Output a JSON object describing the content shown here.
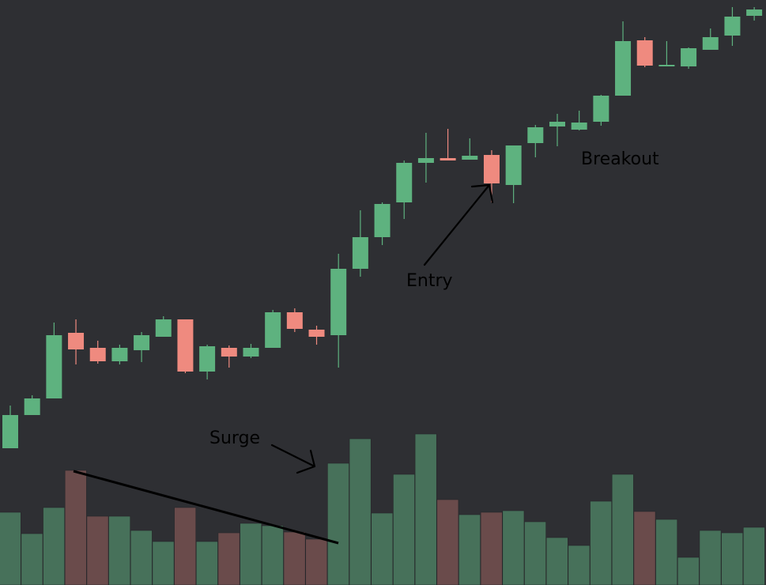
{
  "chart_data": {
    "type": "candlestick",
    "colors": {
      "background": "#2e2f33",
      "up_candle": "#5eb27f",
      "down_candle": "#ef8a7f",
      "up_volume": "#47715a",
      "down_volume": "#6a4b4b",
      "annotation": "#000000"
    },
    "price_range": [
      0,
      740
    ],
    "volume_range": [
      0,
      200
    ],
    "grid": false,
    "candles": [
      {
        "open": 173,
        "close": 215,
        "high": 227,
        "low": 173
      },
      {
        "open": 215,
        "close": 236,
        "high": 240,
        "low": 215
      },
      {
        "open": 236,
        "close": 316,
        "high": 332,
        "low": 236
      },
      {
        "open": 319,
        "close": 298,
        "high": 336,
        "low": 279
      },
      {
        "open": 300,
        "close": 283,
        "high": 309,
        "low": 280
      },
      {
        "open": 283,
        "close": 300,
        "high": 304,
        "low": 279
      },
      {
        "open": 297,
        "close": 316,
        "high": 320,
        "low": 282
      },
      {
        "open": 314,
        "close": 336,
        "high": 340,
        "low": 314
      },
      {
        "open": 336,
        "close": 270,
        "high": 336,
        "low": 268
      },
      {
        "open": 270,
        "close": 302,
        "high": 304,
        "low": 260
      },
      {
        "open": 300,
        "close": 289,
        "high": 303,
        "low": 275
      },
      {
        "open": 289,
        "close": 300,
        "high": 305,
        "low": 287
      },
      {
        "open": 300,
        "close": 345,
        "high": 348,
        "low": 300
      },
      {
        "open": 345,
        "close": 324,
        "high": 350,
        "low": 320
      },
      {
        "open": 323,
        "close": 314,
        "high": 328,
        "low": 304
      },
      {
        "open": 316,
        "close": 400,
        "high": 419,
        "low": 275
      },
      {
        "open": 400,
        "close": 440,
        "high": 474,
        "low": 390
      },
      {
        "open": 440,
        "close": 482,
        "high": 484,
        "low": 430
      },
      {
        "open": 484,
        "close": 534,
        "high": 537,
        "low": 463
      },
      {
        "open": 534,
        "close": 540,
        "high": 572,
        "low": 509
      },
      {
        "open": 540,
        "close": 537,
        "high": 577,
        "low": 537
      },
      {
        "open": 538,
        "close": 543,
        "high": 565,
        "low": 538
      },
      {
        "open": 544,
        "close": 508,
        "high": 550,
        "low": 484
      },
      {
        "open": 506,
        "close": 556,
        "high": 556,
        "low": 483
      },
      {
        "open": 559,
        "close": 579,
        "high": 582,
        "low": 541
      },
      {
        "open": 580,
        "close": 586,
        "high": 596,
        "low": 555
      },
      {
        "open": 576,
        "close": 585,
        "high": 600,
        "low": 575
      },
      {
        "open": 586,
        "close": 619,
        "high": 620,
        "low": 581
      },
      {
        "open": 619,
        "close": 688,
        "high": 713,
        "low": 619
      },
      {
        "open": 689,
        "close": 657,
        "high": 693,
        "low": 655
      },
      {
        "open": 657,
        "close": 658,
        "high": 688,
        "low": 656
      },
      {
        "open": 656,
        "close": 679,
        "high": 680,
        "low": 653
      },
      {
        "open": 677,
        "close": 693,
        "high": 704,
        "low": 677
      },
      {
        "open": 695,
        "close": 719,
        "high": 731,
        "low": 682
      },
      {
        "open": 720,
        "close": 728,
        "high": 731,
        "low": 714
      }
    ],
    "volume": [
      92,
      65,
      98,
      145,
      87,
      87,
      69,
      55,
      98,
      55,
      66,
      78,
      75,
      67,
      58,
      154,
      185,
      91,
      140,
      191,
      108,
      89,
      92,
      94,
      80,
      60,
      50,
      106,
      140,
      93,
      83,
      35,
      69,
      66,
      73
    ],
    "annotations": [
      {
        "text": "Breakout"
      },
      {
        "text": "Entry"
      },
      {
        "text": "Surge"
      }
    ]
  }
}
